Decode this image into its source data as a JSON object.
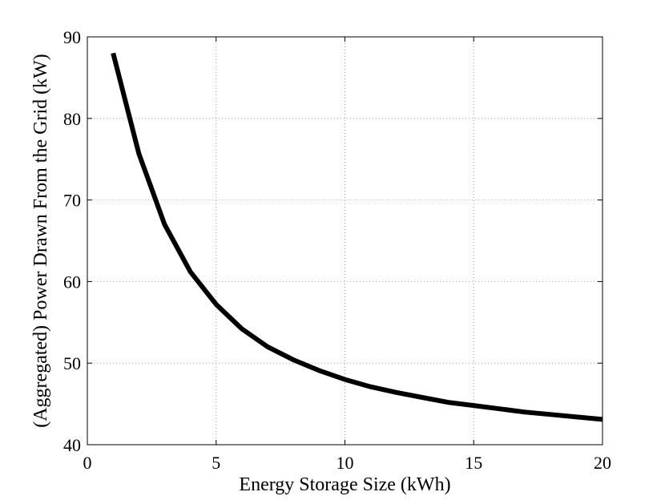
{
  "chart_data": {
    "type": "line",
    "title": "",
    "xlabel": "Energy Storage Size (kWh)",
    "ylabel": "(Aggregated) Power Drawn From the Grid (kW)",
    "xlim": [
      0,
      20
    ],
    "ylim": [
      40,
      90
    ],
    "xticks": [
      0,
      5,
      10,
      15,
      20
    ],
    "yticks": [
      40,
      50,
      60,
      70,
      80,
      90
    ],
    "grid": true,
    "series": [
      {
        "x": [
          1,
          2,
          3,
          4,
          5,
          6,
          7,
          8,
          9,
          10,
          11,
          12,
          13,
          14,
          15,
          16,
          17,
          18,
          19,
          20
        ],
        "y": [
          88.0,
          75.7,
          67.0,
          61.2,
          57.2,
          54.2,
          52.0,
          50.4,
          49.1,
          48.0,
          47.1,
          46.4,
          45.8,
          45.2,
          44.8,
          44.4,
          44.0,
          43.7,
          43.4,
          43.1
        ],
        "color": "#000000"
      }
    ]
  }
}
